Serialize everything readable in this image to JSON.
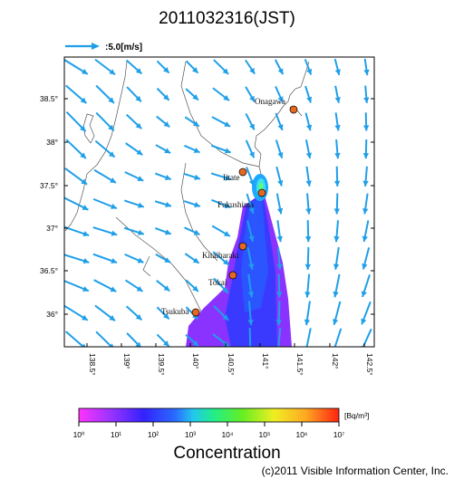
{
  "title": "2011032316(JST)",
  "vector_legend": {
    "label": ":5.0[m/s]"
  },
  "map": {
    "lat_ticks": [
      "38.5°",
      "38°",
      "37.5°",
      "37°",
      "36.5°",
      "36°"
    ],
    "lon_ticks": [
      "138.5°",
      "139°",
      "139.5°",
      "140°",
      "140.5°",
      "141°",
      "141.5°",
      "142°",
      "142.5°"
    ],
    "sites": [
      {
        "name": "Onagawa"
      },
      {
        "name": "Iitate"
      },
      {
        "name": "Fukushima"
      },
      {
        "name": "Kitaibaraki"
      },
      {
        "name": "Tokai"
      },
      {
        "name": "Tsukuba"
      }
    ]
  },
  "colorbar": {
    "unit": "[Bq/m³]",
    "tick_labels": [
      "10⁰",
      "10¹",
      "10²",
      "10³",
      "10⁴",
      "10⁵",
      "10⁶",
      "10⁷"
    ]
  },
  "footer": {
    "concentration_label": "Concentration",
    "copyright": "(c)2011 Visible Information Center, Inc."
  },
  "colors": {
    "wind_vectors": "#1f9fe8",
    "site_marker": "#e5681f",
    "plume_high": "#3fe3e8",
    "plume_mid": "#3333ff",
    "plume_low": "#8a33ff"
  }
}
